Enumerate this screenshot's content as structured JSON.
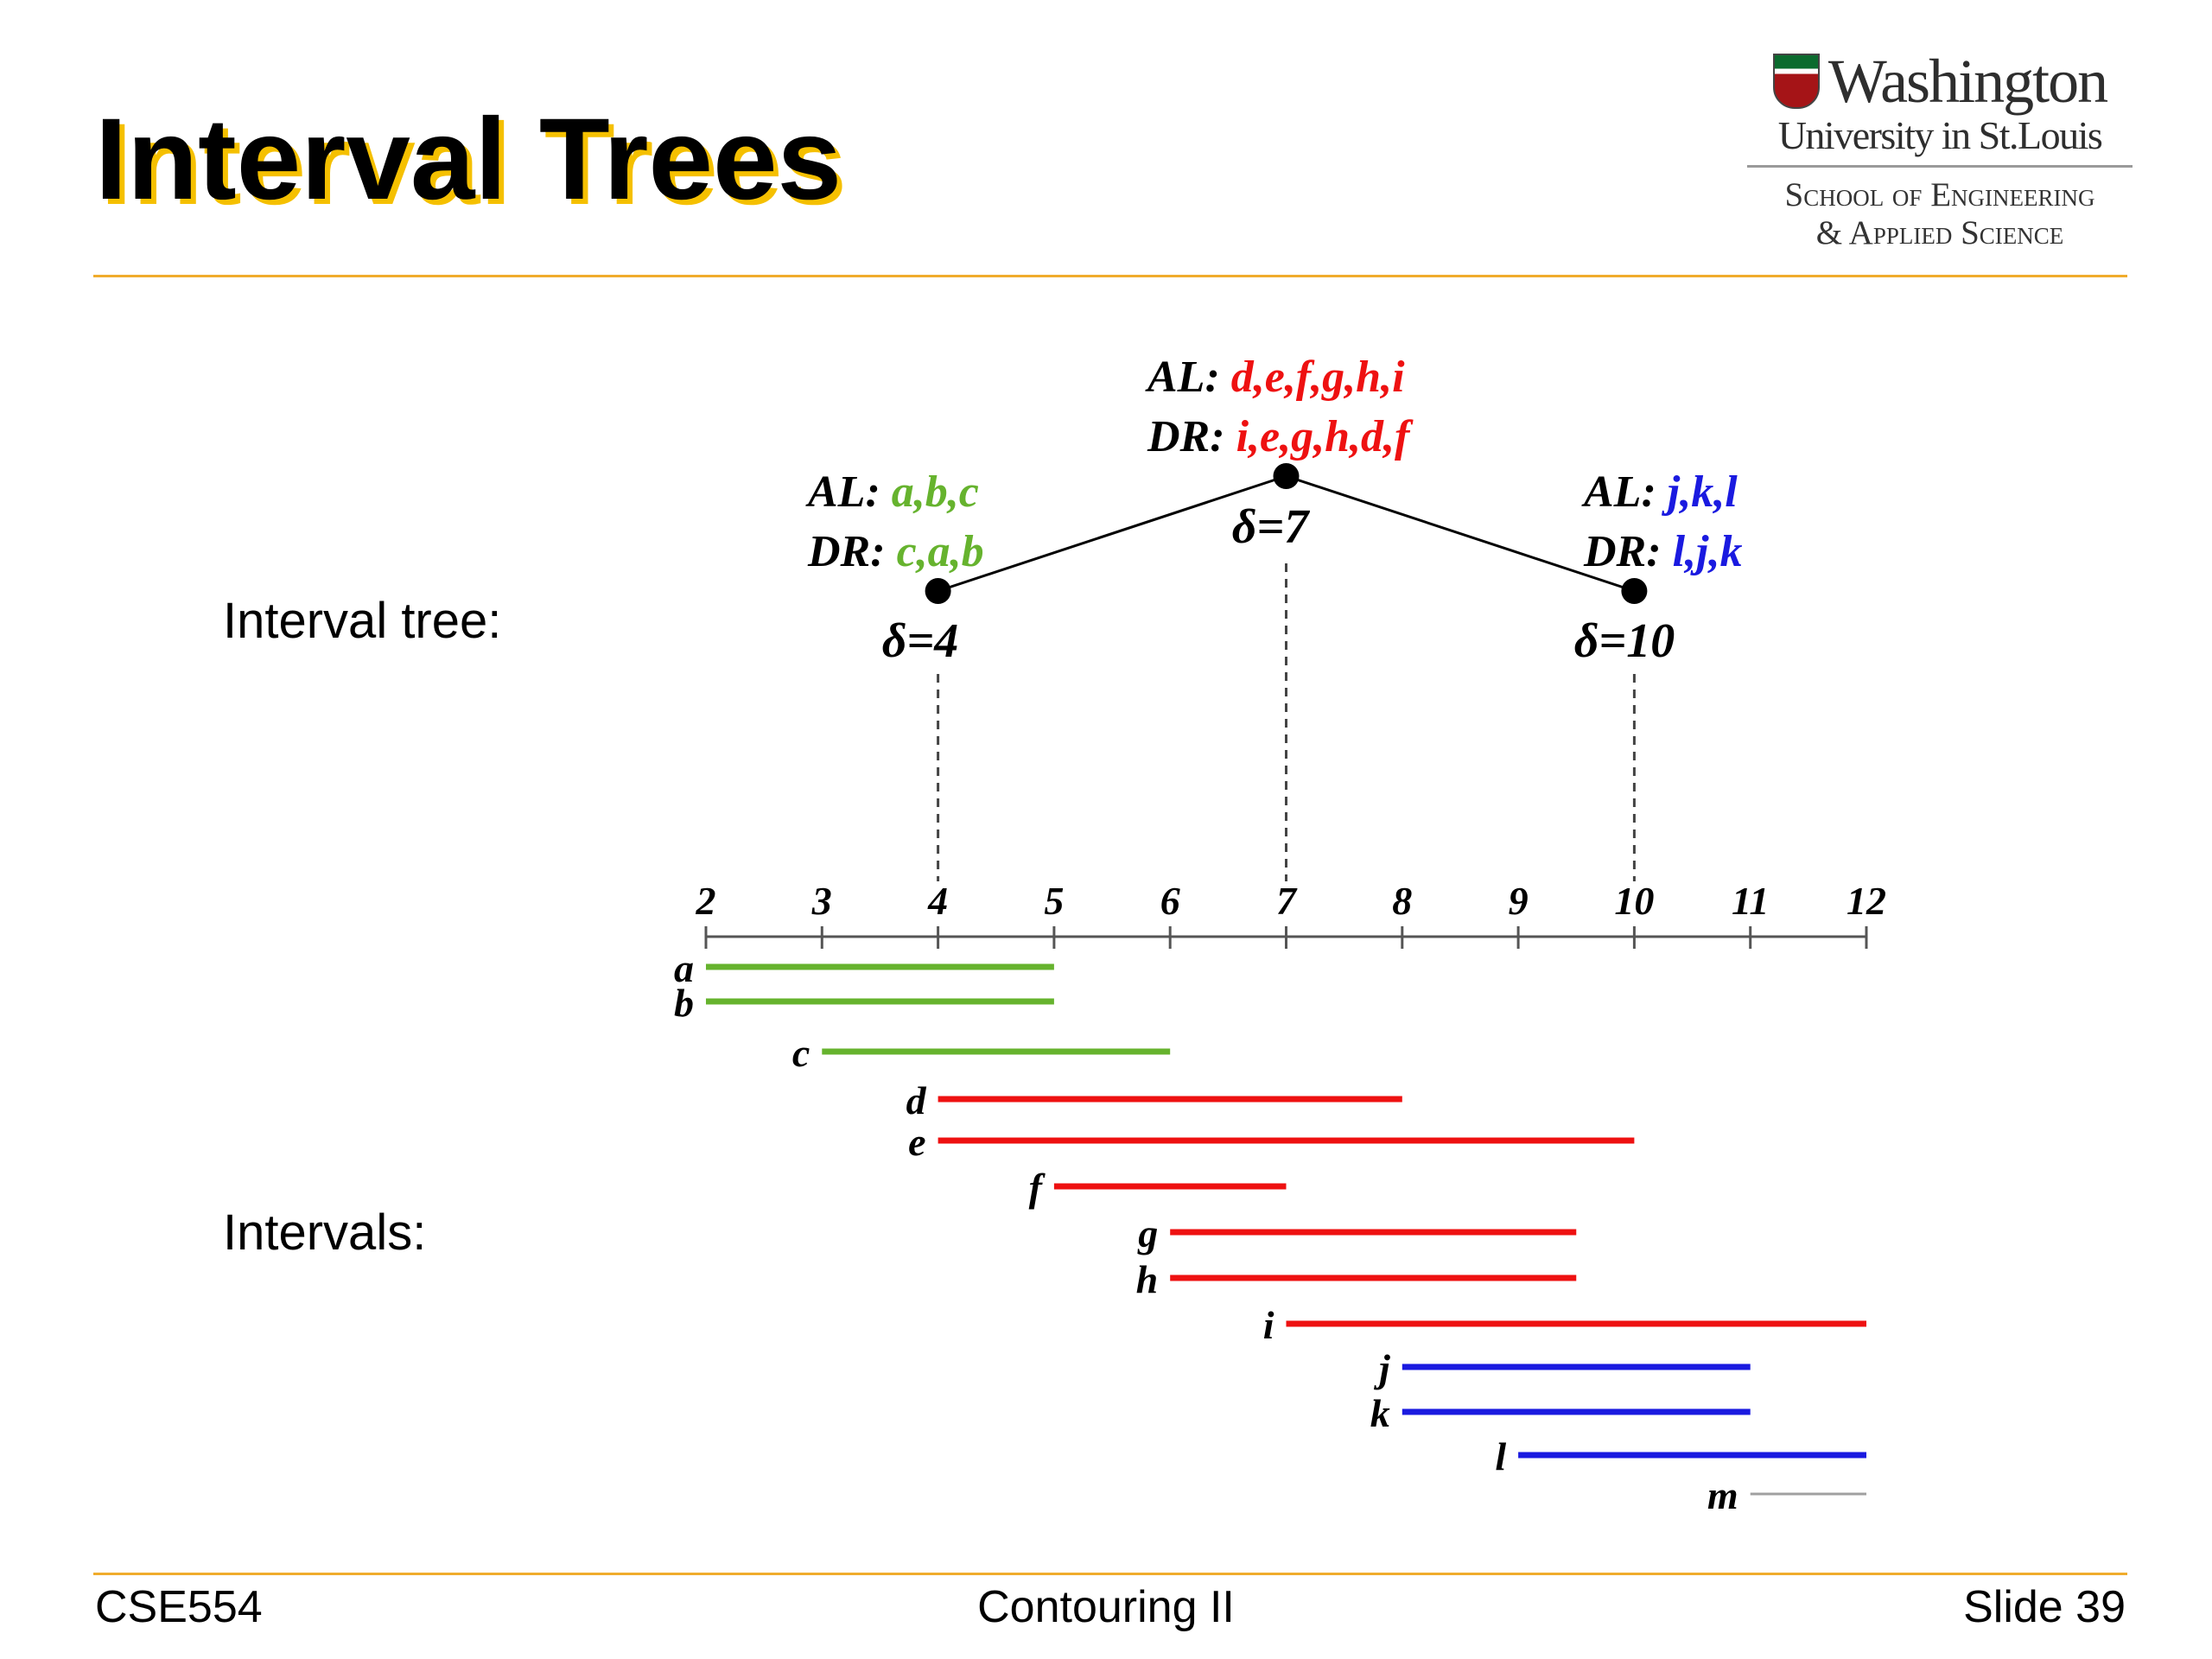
{
  "slide": {
    "title": "Interval Trees",
    "tree_label": "Interval tree:",
    "intervals_label": "Intervals:",
    "logo": {
      "line1": "Washington",
      "line2": "University in St.Louis",
      "line3": "School of Engineering",
      "line4": "& Applied Science"
    },
    "footer": {
      "course": "CSE554",
      "topic": "Contouring II",
      "slide_number": "Slide 39"
    }
  },
  "colors": {
    "green": "#66b32e",
    "red": "#ee1111",
    "blue": "#1a1ae0",
    "gray": "#a0a0a0",
    "accent_rule": "#f0ac2c",
    "title_shadow": "#f5c000"
  },
  "axis": {
    "min": 2,
    "max": 12,
    "ticks": [
      "2",
      "3",
      "4",
      "5",
      "6",
      "7",
      "8",
      "9",
      "10",
      "11",
      "12"
    ]
  },
  "tree": {
    "nodes": [
      {
        "id": "root",
        "delta": 7,
        "delta_label": "δ=7",
        "al_prefix": "AL:",
        "al_list": "d,e,f,g,h,i",
        "dr_prefix": "DR:",
        "dr_list": "i,e,g,h,d,f",
        "color": "red"
      },
      {
        "id": "left",
        "delta": 4,
        "delta_label": "δ=4",
        "al_prefix": "AL:",
        "al_list": "a,b,c",
        "dr_prefix": "DR:",
        "dr_list": "c,a,b",
        "color": "green"
      },
      {
        "id": "right",
        "delta": 10,
        "delta_label": "δ=10",
        "al_prefix": "AL:",
        "al_list": "j,k,l",
        "dr_prefix": "DR:",
        "dr_list": "l,j,k",
        "color": "blue"
      }
    ],
    "edges": [
      [
        "root",
        "left"
      ],
      [
        "root",
        "right"
      ]
    ]
  },
  "intervals": [
    {
      "name": "a",
      "start": 2,
      "end": 5,
      "color": "green"
    },
    {
      "name": "b",
      "start": 2,
      "end": 5,
      "color": "green"
    },
    {
      "name": "c",
      "start": 3,
      "end": 6,
      "color": "green"
    },
    {
      "name": "d",
      "start": 4,
      "end": 8,
      "color": "red"
    },
    {
      "name": "e",
      "start": 4,
      "end": 10,
      "color": "red"
    },
    {
      "name": "f",
      "start": 5,
      "end": 7,
      "color": "red"
    },
    {
      "name": "g",
      "start": 6,
      "end": 9.5,
      "color": "red"
    },
    {
      "name": "h",
      "start": 6,
      "end": 9.5,
      "color": "red"
    },
    {
      "name": "i",
      "start": 7,
      "end": 12,
      "color": "red"
    },
    {
      "name": "j",
      "start": 8,
      "end": 11,
      "color": "blue"
    },
    {
      "name": "k",
      "start": 8,
      "end": 11,
      "color": "blue"
    },
    {
      "name": "l",
      "start": 9,
      "end": 12,
      "color": "blue"
    },
    {
      "name": "m",
      "start": 11,
      "end": 12,
      "color": "gray"
    }
  ]
}
